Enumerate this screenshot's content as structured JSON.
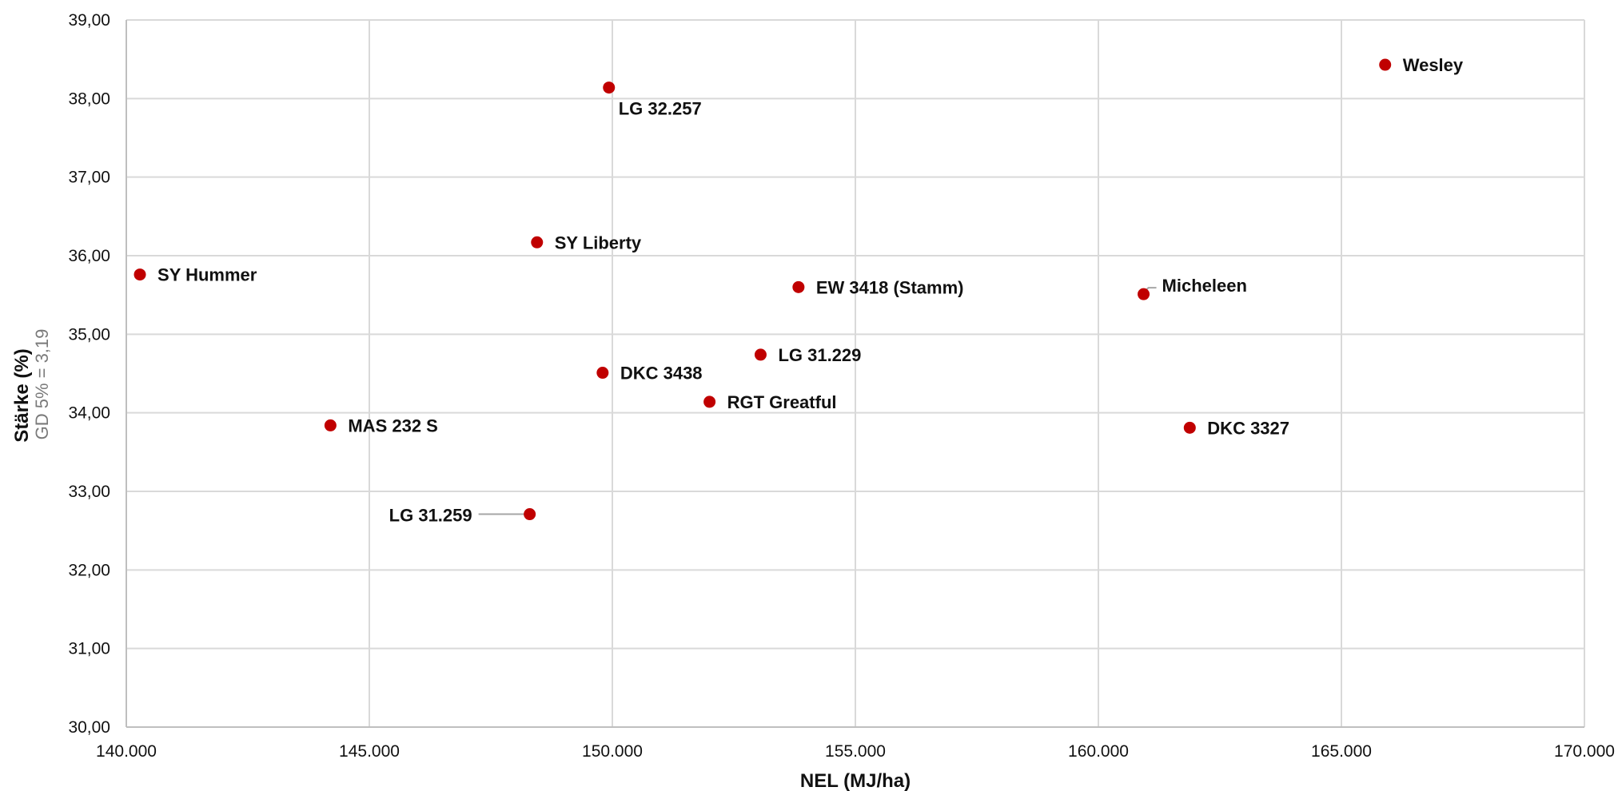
{
  "chart_data": {
    "type": "scatter",
    "title": "",
    "xlabel": "NEL (MJ/ha)",
    "ylabel": "Stärke (%)",
    "ylabel_sub": "GD 5% = 3,19",
    "xlim": [
      140000,
      170000
    ],
    "ylim": [
      30,
      39
    ],
    "x_ticks": [
      "140.000",
      "145.000",
      "150.000",
      "155.000",
      "160.000",
      "165.000",
      "170.000"
    ],
    "y_ticks": [
      "30,00",
      "31,00",
      "32,00",
      "33,00",
      "34,00",
      "35,00",
      "36,00",
      "37,00",
      "38,00",
      "39,00"
    ],
    "grid": true,
    "marker_color": "#c00000",
    "points": [
      {
        "label": "SY Hummer",
        "x": 140280,
        "y": 35.76
      },
      {
        "label": "MAS 232 S",
        "x": 144200,
        "y": 33.84
      },
      {
        "label": "LG 31.259",
        "x": 148300,
        "y": 32.71
      },
      {
        "label": "SY Liberty",
        "x": 148450,
        "y": 36.17
      },
      {
        "label": "DKC 3438",
        "x": 149800,
        "y": 34.51
      },
      {
        "label": "LG 32.257",
        "x": 149930,
        "y": 38.14
      },
      {
        "label": "RGT Greatful",
        "x": 152000,
        "y": 34.14
      },
      {
        "label": "LG 31.229",
        "x": 153050,
        "y": 34.74
      },
      {
        "label": "EW 3418 (Stamm)",
        "x": 153830,
        "y": 35.6
      },
      {
        "label": "Micheleen",
        "x": 160930,
        "y": 35.51
      },
      {
        "label": "DKC 3327",
        "x": 161880,
        "y": 33.81
      },
      {
        "label": "Wesley",
        "x": 165900,
        "y": 38.43
      }
    ]
  }
}
